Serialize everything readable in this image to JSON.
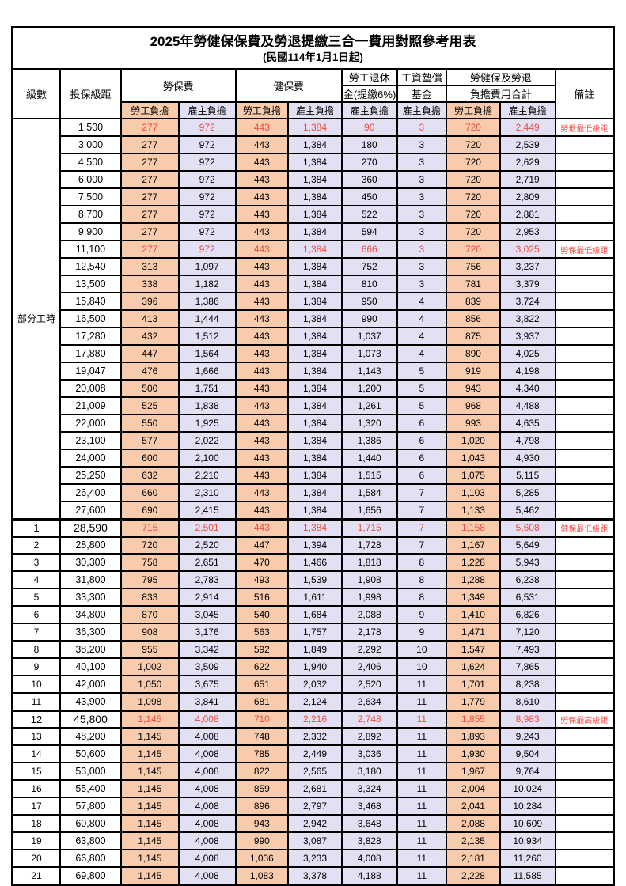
{
  "title": "2025年勞健保保費及勞退提繳三合一費用對照參考用表",
  "subtitle": "(民國114年1月1日起)",
  "header": {
    "col_level": "級數",
    "col_salary": "投保級距",
    "group_labor_ins": "勞保費",
    "group_health_ins": "健保費",
    "group_pension_line1": "勞工退休",
    "group_pension_line2": "金(提繳6%)",
    "group_wage_fund_line1": "工資墊償",
    "group_wage_fund_line2": "基金",
    "group_total_line1": "勞健保及勞退",
    "group_total_line2": "負擔費用合計",
    "col_note": "備註",
    "employee_label": "勞工負擔",
    "employer_label": "雇主負擔"
  },
  "part_time_label": "部分工時",
  "part_time_rowspan": 23,
  "colors": {
    "employee_bg": "#F8CBAD",
    "employer_bg": "#E2E0F2",
    "highlight_red": "#F24B40",
    "note_red": "#FF4747",
    "grid": "#000000"
  },
  "rows": [
    {
      "level": null,
      "salary": "1,500",
      "values": [
        "277",
        "972",
        "443",
        "1,384",
        "90",
        "3",
        "720",
        "2,449"
      ],
      "note": "勞退最低級距",
      "red": true,
      "thick": false
    },
    {
      "level": null,
      "salary": "3,000",
      "values": [
        "277",
        "972",
        "443",
        "1,384",
        "180",
        "3",
        "720",
        "2,539"
      ],
      "note": "",
      "red": false,
      "thick": false
    },
    {
      "level": null,
      "salary": "4,500",
      "values": [
        "277",
        "972",
        "443",
        "1,384",
        "270",
        "3",
        "720",
        "2,629"
      ],
      "note": "",
      "red": false,
      "thick": false
    },
    {
      "level": null,
      "salary": "6,000",
      "values": [
        "277",
        "972",
        "443",
        "1,384",
        "360",
        "3",
        "720",
        "2,719"
      ],
      "note": "",
      "red": false,
      "thick": false
    },
    {
      "level": null,
      "salary": "7,500",
      "values": [
        "277",
        "972",
        "443",
        "1,384",
        "450",
        "3",
        "720",
        "2,809"
      ],
      "note": "",
      "red": false,
      "thick": false
    },
    {
      "level": null,
      "salary": "8,700",
      "values": [
        "277",
        "972",
        "443",
        "1,384",
        "522",
        "3",
        "720",
        "2,881"
      ],
      "note": "",
      "red": false,
      "thick": false
    },
    {
      "level": null,
      "salary": "9,900",
      "values": [
        "277",
        "972",
        "443",
        "1,384",
        "594",
        "3",
        "720",
        "2,953"
      ],
      "note": "",
      "red": false,
      "thick": false
    },
    {
      "level": null,
      "salary": "11,100",
      "values": [
        "277",
        "972",
        "443",
        "1,384",
        "666",
        "3",
        "720",
        "3,025"
      ],
      "note": "勞保最低級距",
      "red": true,
      "thick": false
    },
    {
      "level": null,
      "salary": "12,540",
      "values": [
        "313",
        "1,097",
        "443",
        "1,384",
        "752",
        "3",
        "756",
        "3,237"
      ],
      "note": "",
      "red": false,
      "thick": false
    },
    {
      "level": null,
      "salary": "13,500",
      "values": [
        "338",
        "1,182",
        "443",
        "1,384",
        "810",
        "3",
        "781",
        "3,379"
      ],
      "note": "",
      "red": false,
      "thick": false
    },
    {
      "level": null,
      "salary": "15,840",
      "values": [
        "396",
        "1,386",
        "443",
        "1,384",
        "950",
        "4",
        "839",
        "3,724"
      ],
      "note": "",
      "red": false,
      "thick": false
    },
    {
      "level": null,
      "salary": "16,500",
      "values": [
        "413",
        "1,444",
        "443",
        "1,384",
        "990",
        "4",
        "856",
        "3,822"
      ],
      "note": "",
      "red": false,
      "thick": false
    },
    {
      "level": null,
      "salary": "17,280",
      "values": [
        "432",
        "1,512",
        "443",
        "1,384",
        "1,037",
        "4",
        "875",
        "3,937"
      ],
      "note": "",
      "red": false,
      "thick": false
    },
    {
      "level": null,
      "salary": "17,880",
      "values": [
        "447",
        "1,564",
        "443",
        "1,384",
        "1,073",
        "4",
        "890",
        "4,025"
      ],
      "note": "",
      "red": false,
      "thick": false
    },
    {
      "level": null,
      "salary": "19,047",
      "values": [
        "476",
        "1,666",
        "443",
        "1,384",
        "1,143",
        "5",
        "919",
        "4,198"
      ],
      "note": "",
      "red": false,
      "thick": false
    },
    {
      "level": null,
      "salary": "20,008",
      "values": [
        "500",
        "1,751",
        "443",
        "1,384",
        "1,200",
        "5",
        "943",
        "4,340"
      ],
      "note": "",
      "red": false,
      "thick": false
    },
    {
      "level": null,
      "salary": "21,009",
      "values": [
        "525",
        "1,838",
        "443",
        "1,384",
        "1,261",
        "5",
        "968",
        "4,488"
      ],
      "note": "",
      "red": false,
      "thick": false
    },
    {
      "level": null,
      "salary": "22,000",
      "values": [
        "550",
        "1,925",
        "443",
        "1,384",
        "1,320",
        "6",
        "993",
        "4,635"
      ],
      "note": "",
      "red": false,
      "thick": false
    },
    {
      "level": null,
      "salary": "23,100",
      "values": [
        "577",
        "2,022",
        "443",
        "1,384",
        "1,386",
        "6",
        "1,020",
        "4,798"
      ],
      "note": "",
      "red": false,
      "thick": false
    },
    {
      "level": null,
      "salary": "24,000",
      "values": [
        "600",
        "2,100",
        "443",
        "1,384",
        "1,440",
        "6",
        "1,043",
        "4,930"
      ],
      "note": "",
      "red": false,
      "thick": false
    },
    {
      "level": null,
      "salary": "25,250",
      "values": [
        "632",
        "2,210",
        "443",
        "1,384",
        "1,515",
        "6",
        "1,075",
        "5,115"
      ],
      "note": "",
      "red": false,
      "thick": false
    },
    {
      "level": null,
      "salary": "26,400",
      "values": [
        "660",
        "2,310",
        "443",
        "1,384",
        "1,584",
        "7",
        "1,103",
        "5,285"
      ],
      "note": "",
      "red": false,
      "thick": false
    },
    {
      "level": null,
      "salary": "27,600",
      "values": [
        "690",
        "2,415",
        "443",
        "1,384",
        "1,656",
        "7",
        "1,133",
        "5,462"
      ],
      "note": "",
      "red": false,
      "thick": false
    },
    {
      "level": "1",
      "salary": "28,590",
      "values": [
        "715",
        "2,501",
        "443",
        "1,384",
        "1,715",
        "7",
        "1,158",
        "5,608"
      ],
      "note": "健保最低級距",
      "red": true,
      "thick": true
    },
    {
      "level": "2",
      "salary": "28,800",
      "values": [
        "720",
        "2,520",
        "447",
        "1,394",
        "1,728",
        "7",
        "1,167",
        "5,649"
      ],
      "note": "",
      "red": false,
      "thick": false
    },
    {
      "level": "3",
      "salary": "30,300",
      "values": [
        "758",
        "2,651",
        "470",
        "1,466",
        "1,818",
        "8",
        "1,228",
        "5,943"
      ],
      "note": "",
      "red": false,
      "thick": false
    },
    {
      "level": "4",
      "salary": "31,800",
      "values": [
        "795",
        "2,783",
        "493",
        "1,539",
        "1,908",
        "8",
        "1,288",
        "6,238"
      ],
      "note": "",
      "red": false,
      "thick": false
    },
    {
      "level": "5",
      "salary": "33,300",
      "values": [
        "833",
        "2,914",
        "516",
        "1,611",
        "1,998",
        "8",
        "1,349",
        "6,531"
      ],
      "note": "",
      "red": false,
      "thick": false
    },
    {
      "level": "6",
      "salary": "34,800",
      "values": [
        "870",
        "3,045",
        "540",
        "1,684",
        "2,088",
        "9",
        "1,410",
        "6,826"
      ],
      "note": "",
      "red": false,
      "thick": false
    },
    {
      "level": "7",
      "salary": "36,300",
      "values": [
        "908",
        "3,176",
        "563",
        "1,757",
        "2,178",
        "9",
        "1,471",
        "7,120"
      ],
      "note": "",
      "red": false,
      "thick": false
    },
    {
      "level": "8",
      "salary": "38,200",
      "values": [
        "955",
        "3,342",
        "592",
        "1,849",
        "2,292",
        "10",
        "1,547",
        "7,493"
      ],
      "note": "",
      "red": false,
      "thick": false
    },
    {
      "level": "9",
      "salary": "40,100",
      "values": [
        "1,002",
        "3,509",
        "622",
        "1,940",
        "2,406",
        "10",
        "1,624",
        "7,865"
      ],
      "note": "",
      "red": false,
      "thick": false
    },
    {
      "level": "10",
      "salary": "42,000",
      "values": [
        "1,050",
        "3,675",
        "651",
        "2,032",
        "2,520",
        "11",
        "1,701",
        "8,238"
      ],
      "note": "",
      "red": false,
      "thick": false
    },
    {
      "level": "11",
      "salary": "43,900",
      "values": [
        "1,098",
        "3,841",
        "681",
        "2,124",
        "2,634",
        "11",
        "1,779",
        "8,610"
      ],
      "note": "",
      "red": false,
      "thick": false
    },
    {
      "level": "12",
      "salary": "45,800",
      "values": [
        "1,145",
        "4,008",
        "710",
        "2,216",
        "2,748",
        "11",
        "1,855",
        "8,983"
      ],
      "note": "勞保最高級距",
      "red": true,
      "thick": true
    },
    {
      "level": "13",
      "salary": "48,200",
      "values": [
        "1,145",
        "4,008",
        "748",
        "2,332",
        "2,892",
        "11",
        "1,893",
        "9,243"
      ],
      "note": "",
      "red": false,
      "thick": false
    },
    {
      "level": "14",
      "salary": "50,600",
      "values": [
        "1,145",
        "4,008",
        "785",
        "2,449",
        "3,036",
        "11",
        "1,930",
        "9,504"
      ],
      "note": "",
      "red": false,
      "thick": false
    },
    {
      "level": "15",
      "salary": "53,000",
      "values": [
        "1,145",
        "4,008",
        "822",
        "2,565",
        "3,180",
        "11",
        "1,967",
        "9,764"
      ],
      "note": "",
      "red": false,
      "thick": false
    },
    {
      "level": "16",
      "salary": "55,400",
      "values": [
        "1,145",
        "4,008",
        "859",
        "2,681",
        "3,324",
        "11",
        "2,004",
        "10,024"
      ],
      "note": "",
      "red": false,
      "thick": false
    },
    {
      "level": "17",
      "salary": "57,800",
      "values": [
        "1,145",
        "4,008",
        "896",
        "2,797",
        "3,468",
        "11",
        "2,041",
        "10,284"
      ],
      "note": "",
      "red": false,
      "thick": false
    },
    {
      "level": "18",
      "salary": "60,800",
      "values": [
        "1,145",
        "4,008",
        "943",
        "2,942",
        "3,648",
        "11",
        "2,088",
        "10,609"
      ],
      "note": "",
      "red": false,
      "thick": false
    },
    {
      "level": "19",
      "salary": "63,800",
      "values": [
        "1,145",
        "4,008",
        "990",
        "3,087",
        "3,828",
        "11",
        "2,135",
        "10,934"
      ],
      "note": "",
      "red": false,
      "thick": false
    },
    {
      "level": "20",
      "salary": "66,800",
      "values": [
        "1,145",
        "4,008",
        "1,036",
        "3,233",
        "4,008",
        "11",
        "2,181",
        "11,260"
      ],
      "note": "",
      "red": false,
      "thick": false
    },
    {
      "level": "21",
      "salary": "69,800",
      "values": [
        "1,145",
        "4,008",
        "1,083",
        "3,378",
        "4,188",
        "11",
        "2,228",
        "11,585"
      ],
      "note": "",
      "red": false,
      "thick": false
    }
  ]
}
